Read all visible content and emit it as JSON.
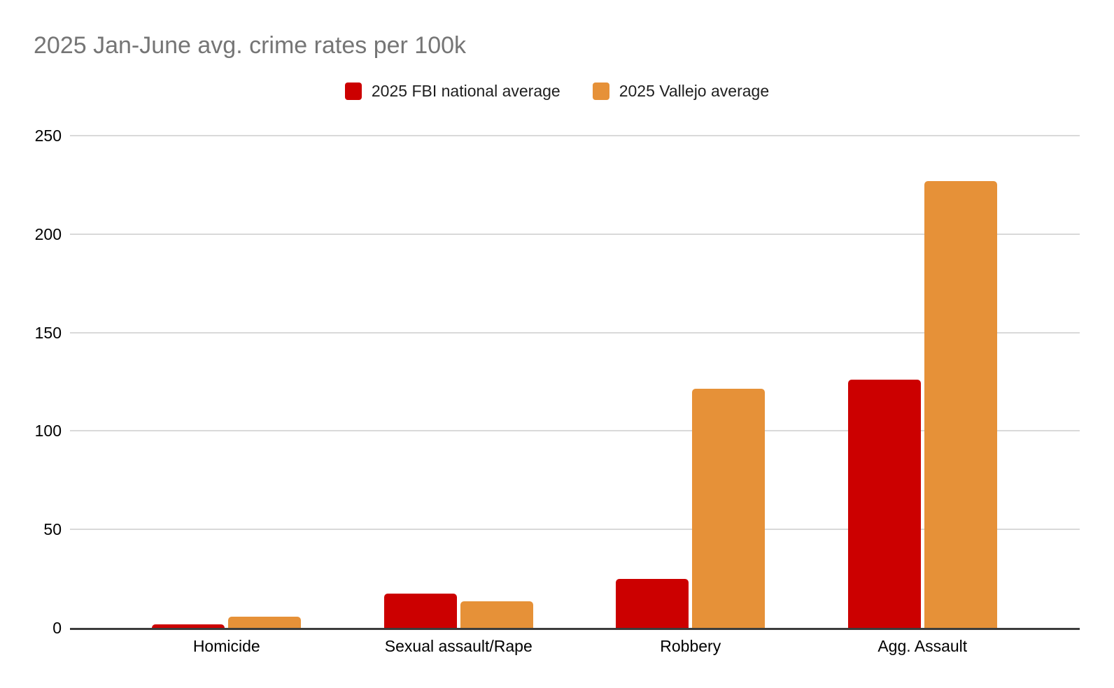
{
  "chart_data": {
    "type": "bar",
    "title": "2025 Jan-June avg. crime rates per 100k",
    "categories": [
      "Homicide",
      "Sexual assault/Rape",
      "Robbery",
      "Agg. Assault"
    ],
    "series": [
      {
        "name": "2025 FBI national average",
        "color": "#cc0000",
        "values": [
          1.7,
          17.5,
          25,
          126
        ]
      },
      {
        "name": "2025 Vallejo average",
        "color": "#e69138",
        "values": [
          5.7,
          13.5,
          121.5,
          227
        ]
      }
    ],
    "xlabel": "",
    "ylabel": "",
    "ylim": [
      0,
      250
    ],
    "yticks": [
      0,
      50,
      100,
      150,
      200,
      250
    ],
    "grid": true,
    "legend_position": "top",
    "colors": {
      "title_text": "#757575",
      "axis_text": "#000000",
      "legend_text": "#1f1f1f",
      "gridline": "#d9d9d9",
      "baseline": "#3c3c3c",
      "background": "#ffffff"
    }
  }
}
